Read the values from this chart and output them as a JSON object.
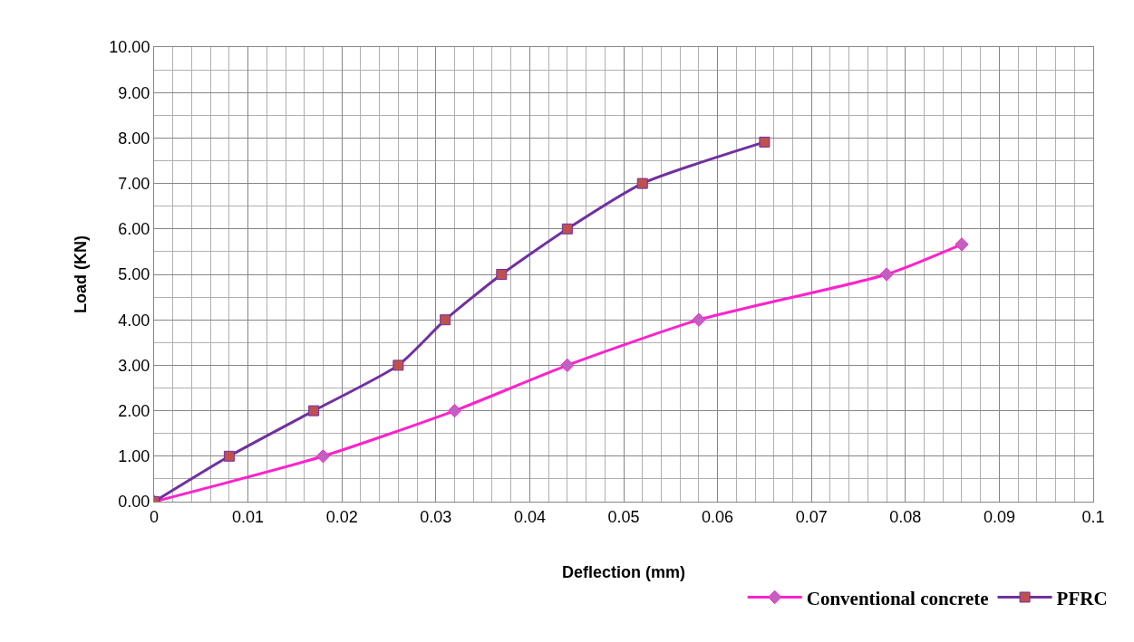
{
  "chart_data": {
    "type": "line",
    "xlabel": "Deflection (mm)",
    "ylabel": "Load (KN)",
    "xlim": [
      0,
      0.1
    ],
    "xticks": [
      0,
      0.01,
      0.02,
      0.03,
      0.04,
      0.05,
      0.06,
      0.07,
      0.08,
      0.09,
      0.1
    ],
    "ylim": [
      0,
      10
    ],
    "yticks": [
      {
        "value": 0,
        "label": "0.00"
      },
      {
        "value": 1,
        "label": "1.00"
      },
      {
        "value": 2,
        "label": "2.00"
      },
      {
        "value": 3,
        "label": "3.00"
      },
      {
        "value": 4,
        "label": "4.00"
      },
      {
        "value": 5,
        "label": "5.00"
      },
      {
        "value": 6,
        "label": "6.00"
      },
      {
        "value": 7,
        "label": "7.00"
      },
      {
        "value": 8,
        "label": "8.00"
      },
      {
        "value": 9,
        "label": "9.00"
      },
      {
        "value": 10,
        "label": "10.00"
      }
    ],
    "grid": true,
    "legend": "bottom right",
    "series": [
      {
        "name": "Conventional concrete",
        "color": "#ff22cc",
        "marker": "diamond",
        "x": [
          0,
          0.018,
          0.032,
          0.044,
          0.058,
          0.078,
          0.086
        ],
        "values": [
          0,
          1,
          2,
          3,
          4,
          5,
          5.66
        ]
      },
      {
        "name": "PFRC",
        "color": "#7030a0",
        "marker": "square",
        "x": [
          0,
          0.008,
          0.017,
          0.026,
          0.031,
          0.037,
          0.044,
          0.052,
          0.065
        ],
        "values": [
          0,
          1,
          2,
          3,
          4,
          5,
          6,
          7,
          7.91
        ]
      }
    ]
  }
}
